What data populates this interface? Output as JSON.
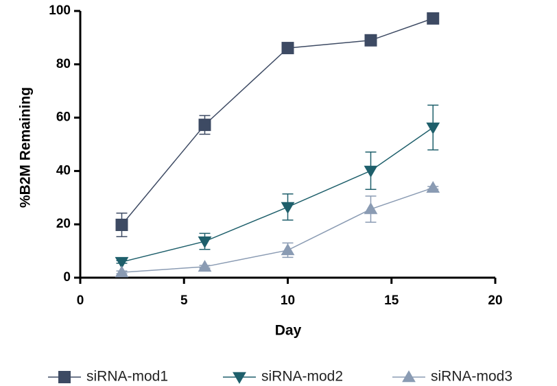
{
  "chart_data": {
    "type": "line",
    "x_label": "Day",
    "y_label": "%B2M Remaining",
    "x": [
      2,
      6,
      10,
      14,
      17
    ],
    "xlim": [
      0,
      20
    ],
    "xticks": [
      0,
      5,
      10,
      15,
      20
    ],
    "ylim": [
      0,
      100
    ],
    "yticks": [
      0,
      20,
      40,
      60,
      80,
      100
    ],
    "legend": "bottom",
    "series": [
      {
        "name": "siRNA-mod1",
        "color": "#3d4a63",
        "marker": "square",
        "values": [
          19.8,
          57.3,
          86.1,
          89,
          97.2
        ],
        "errors": [
          4.4,
          3.5,
          0.5,
          2,
          0.5
        ]
      },
      {
        "name": "siRNA-mod2",
        "color": "#1e5f6b",
        "marker": "triangle-down",
        "values": [
          5.9,
          13.6,
          26.5,
          40.1,
          56.3
        ],
        "errors": [
          0.5,
          3,
          4.9,
          7,
          8.4
        ]
      },
      {
        "name": "siRNA-mod3",
        "color": "#8a9bb3",
        "marker": "triangle-up",
        "values": [
          2,
          4.1,
          10.3,
          25.7,
          33.7
        ],
        "errors": [
          0.5,
          0.5,
          2.7,
          4.9,
          0.5
        ]
      }
    ]
  }
}
